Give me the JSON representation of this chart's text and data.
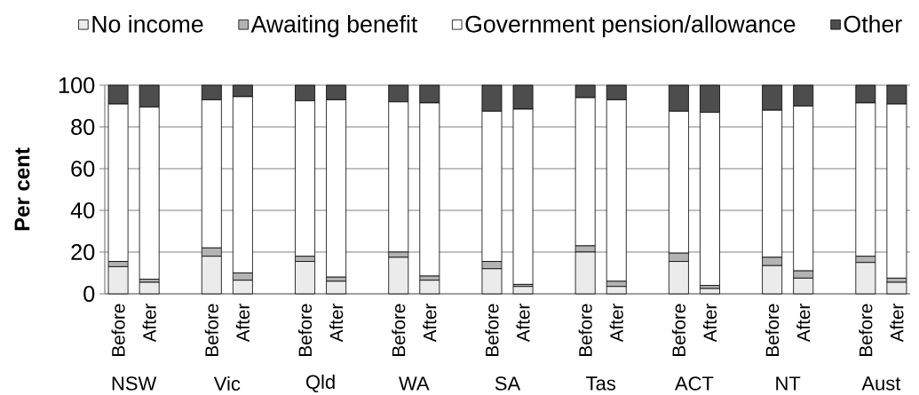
{
  "chart_data": {
    "type": "bar",
    "stacked": true,
    "ylabel": "Per cent",
    "categories": [
      "Before",
      "After",
      "Before",
      "After",
      "Before",
      "After",
      "Before",
      "After",
      "Before",
      "After",
      "Before",
      "After",
      "Before",
      "After",
      "Before",
      "After",
      "Before",
      "After"
    ],
    "annotations": [
      "NSW",
      "Vic",
      "Qld",
      "WA",
      "SA",
      "Tas",
      "ACT",
      "NT",
      "Aust"
    ],
    "series": [
      {
        "name": "No income",
        "color": "#ebebeb",
        "values": [
          13,
          5.5,
          18,
          6.5,
          15.5,
          6,
          17.5,
          6.5,
          12,
          3.5,
          20,
          3.5,
          15.5,
          2.5,
          13.5,
          7.5,
          15,
          5.5
        ]
      },
      {
        "name": "Awaiting benefit",
        "color": "#b3b3b3",
        "values": [
          2.5,
          1.5,
          4,
          3.5,
          2.5,
          2,
          2.5,
          2,
          3.5,
          1,
          3,
          2.5,
          4,
          1.5,
          4,
          3.5,
          3,
          2
        ]
      },
      {
        "name": "Government pension/allowance",
        "color": "#ffffff",
        "values": [
          75.5,
          82.5,
          71,
          84.5,
          74.5,
          85,
          72,
          83,
          72,
          84,
          71,
          87,
          68,
          83,
          70.5,
          79,
          73.5,
          83.5
        ]
      },
      {
        "name": "Other",
        "color": "#4d4d4d",
        "values": [
          9,
          10.5,
          7,
          5.5,
          7.5,
          7,
          8,
          8.5,
          12.5,
          11.5,
          6,
          7,
          12.5,
          13,
          12,
          10,
          8.5,
          9
        ]
      }
    ],
    "ylim": [
      0,
      100
    ],
    "yticks": [
      0,
      20,
      40,
      60,
      80,
      100
    ],
    "grid": "y",
    "legend": "top"
  }
}
